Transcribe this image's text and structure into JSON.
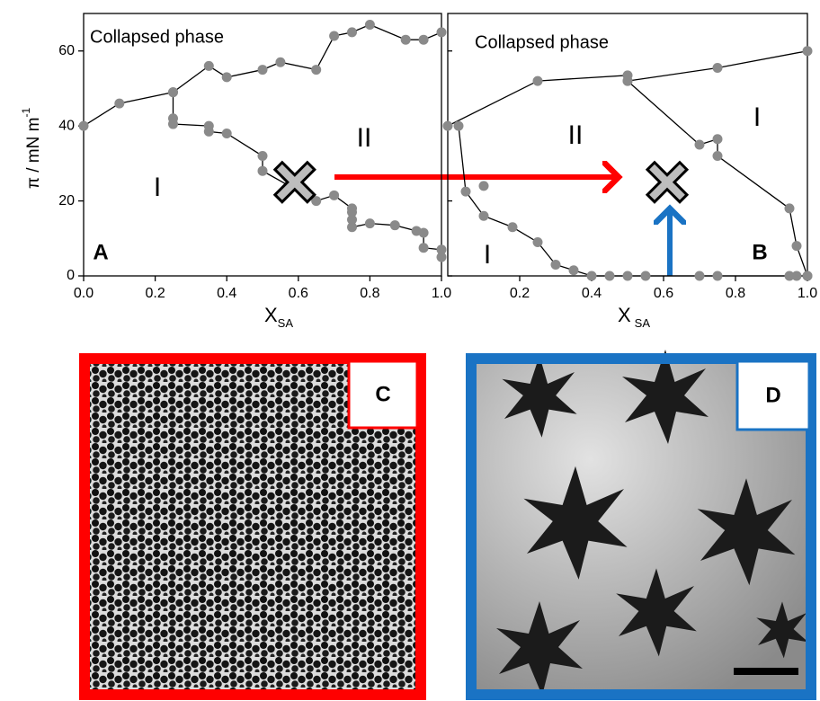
{
  "chart_data": [
    {
      "type": "line",
      "panel_label": "A",
      "xlabel": "X",
      "xlabel_sub": "SA",
      "ylabel": "π / mN m",
      "ylabel_sup": "-1",
      "annotations": [
        "Collapsed phase",
        "I",
        "II"
      ],
      "xlim": [
        0,
        1
      ],
      "ylim": [
        0,
        70
      ],
      "xticks": [
        {
          "value": 0,
          "label": "0.0"
        },
        0.2,
        0.4,
        0.6,
        0.8,
        {
          "value": 1,
          "label": "1.0"
        }
      ],
      "yticks": [
        0,
        20,
        40,
        60
      ],
      "marker_color": "#8a8a8a",
      "line_color": "#000000",
      "series": [
        {
          "x": [
            0,
            0.1,
            0.25,
            0.35,
            0.4,
            0.5,
            0.55,
            0.65,
            0.7,
            0.75,
            0.8,
            0.9,
            0.95,
            1.0
          ],
          "values": [
            40,
            46,
            49,
            56,
            53,
            55,
            57,
            55,
            64,
            65,
            67,
            63,
            63,
            65
          ],
          "line": true
        },
        {
          "x": [
            0.25,
            0.25,
            0.25,
            0.35,
            0.35,
            0.4,
            0.5,
            0.5,
            0.65,
            0.7,
            0.75,
            0.75,
            0.75,
            0.75,
            0.8,
            0.87,
            0.93,
            0.95,
            0.95,
            1.0,
            1.0
          ],
          "values": [
            49,
            42,
            40.5,
            40,
            38.5,
            38,
            32,
            28,
            20,
            21.5,
            18,
            17,
            15,
            13,
            14,
            13.5,
            12,
            11.5,
            7.5,
            7,
            5
          ],
          "line": true
        }
      ],
      "state_point": {
        "x": 0.59,
        "y": 25
      }
    },
    {
      "type": "line",
      "panel_label": "B",
      "annotations": [
        "Collapsed phase",
        "II",
        "I",
        "I"
      ],
      "xlim": [
        0,
        1
      ],
      "ylim": [
        0,
        70
      ],
      "xticks": [
        0.2,
        0.4,
        0.6,
        0.8,
        {
          "value": 1,
          "label": "1.0"
        }
      ],
      "yticks": [
        0,
        20,
        40,
        60
      ],
      "marker_color": "#8a8a8a",
      "line_color": "#000000",
      "series": [
        {
          "x": [
            0,
            0.25,
            0.5,
            0.5,
            0.75,
            1.0
          ],
          "values": [
            40,
            52,
            53.5,
            52,
            55.5,
            60
          ],
          "line": true
        },
        {
          "x": [
            0.5,
            0.7,
            0.75,
            0.75,
            0.95,
            0.97,
            1.0
          ],
          "values": [
            52,
            35,
            36.5,
            32,
            18,
            8,
            0
          ],
          "line": true
        },
        {
          "x": [
            0.03,
            0.05,
            0.1,
            0.18,
            0.25,
            0.3,
            0.35,
            0.4,
            0.45,
            0.5,
            0.55,
            0.7,
            0.75,
            0.95,
            0.97,
            1.0
          ],
          "values": [
            40,
            22.5,
            16,
            13,
            9,
            3,
            1.5,
            0,
            0,
            0,
            0,
            0,
            0,
            0,
            0,
            0
          ],
          "line": true
        },
        {
          "x": [
            0.1
          ],
          "values": [
            24
          ],
          "line": false
        }
      ],
      "state_point": {
        "x": 0.61,
        "y": 25
      }
    }
  ],
  "images": [
    {
      "label": "C"
    },
    {
      "label": "D"
    }
  ]
}
